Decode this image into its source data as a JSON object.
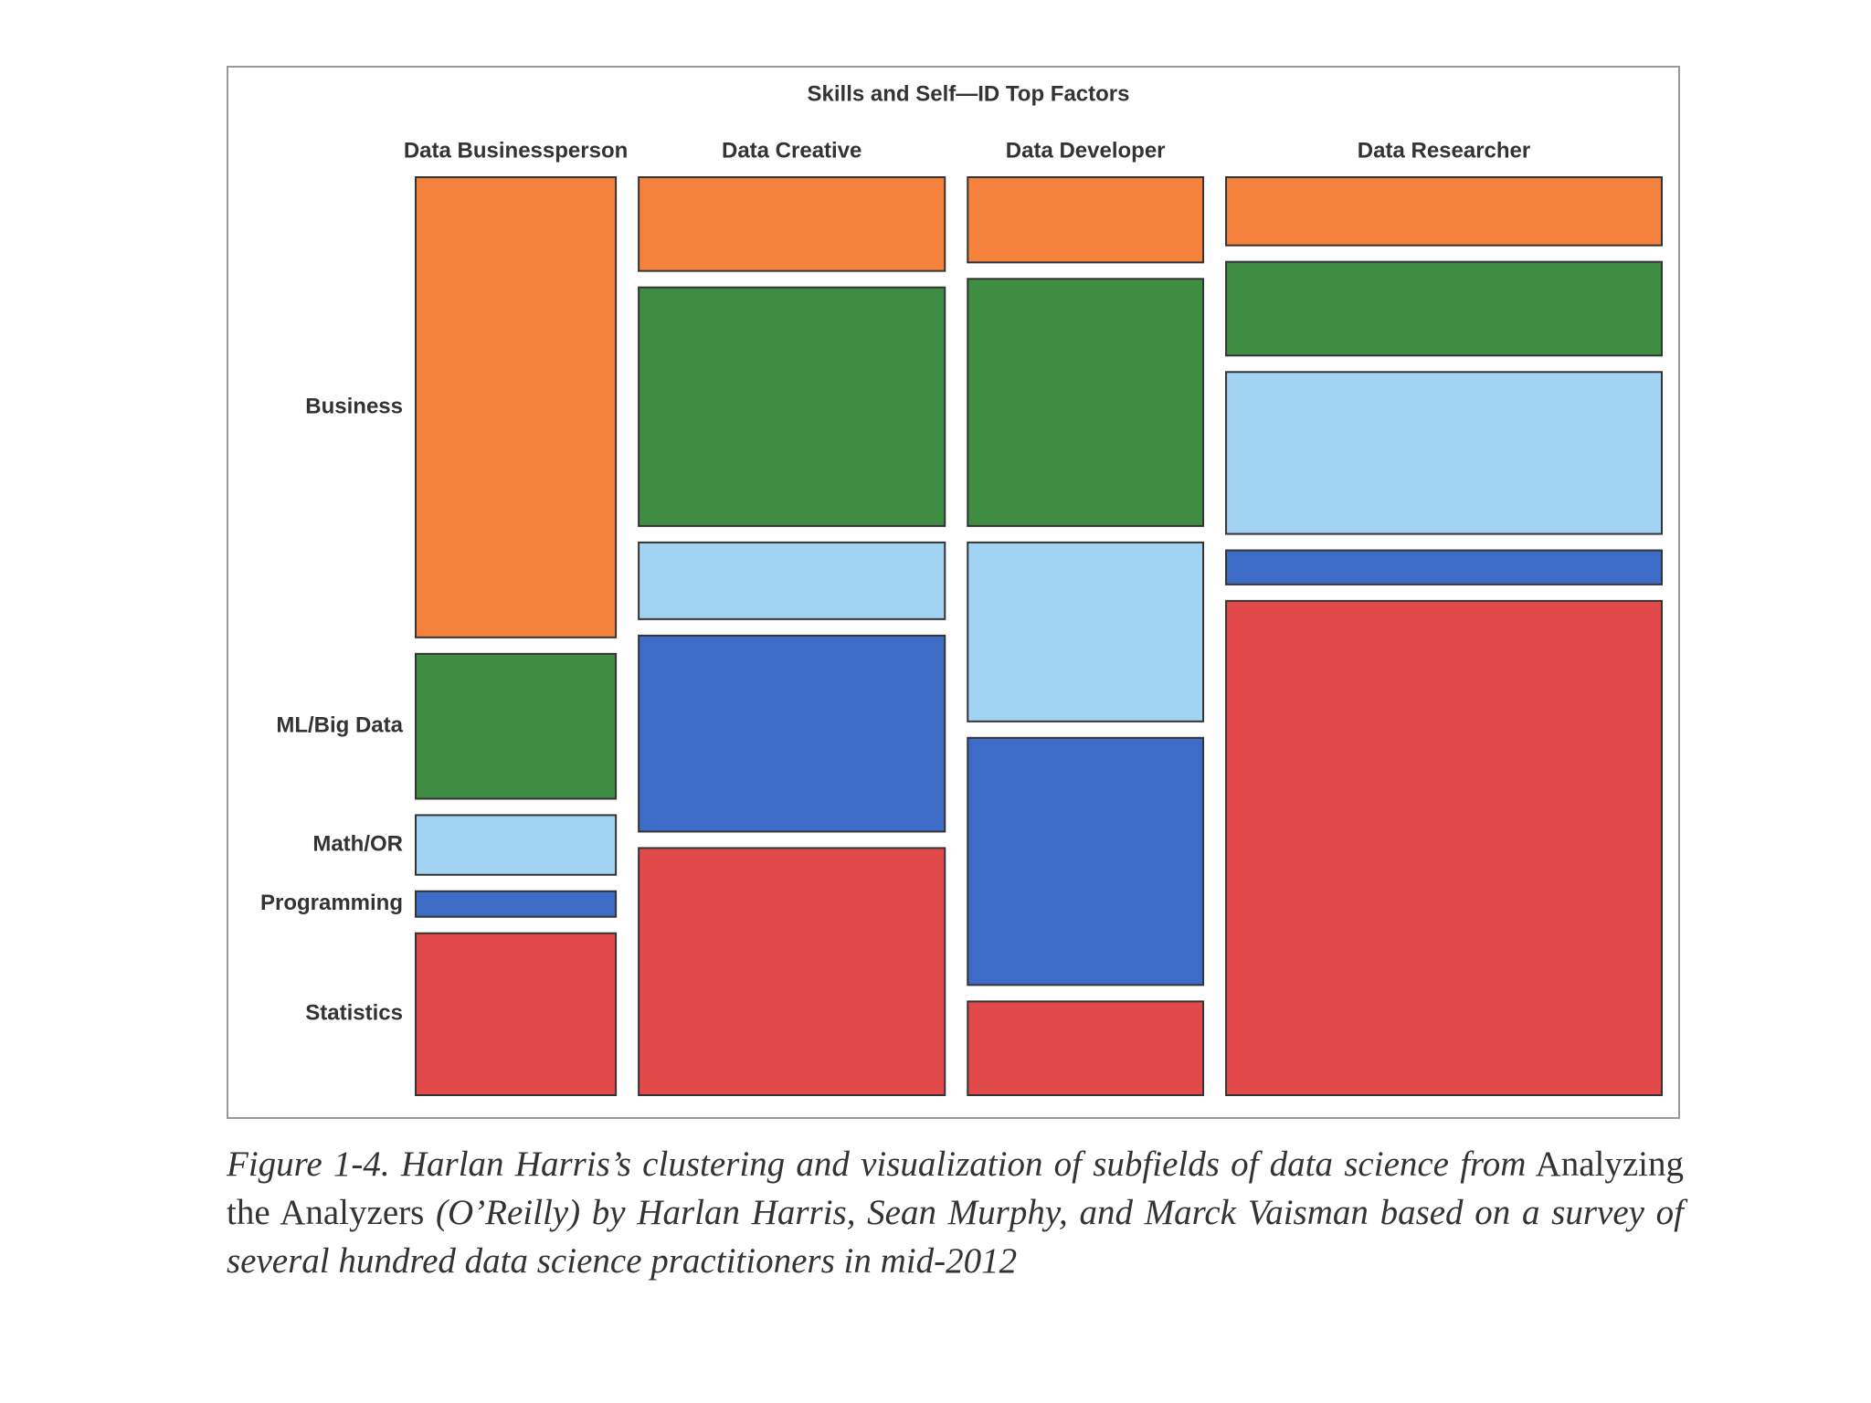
{
  "chart_data": {
    "type": "mosaic",
    "title": "Skills and Self—ID Top Factors",
    "categories": [
      "Data Businessperson",
      "Data Creative",
      "Data Developer",
      "Data Researcher"
    ],
    "widths": [
      17,
      26,
      20,
      37
    ],
    "series": [
      {
        "name": "Business",
        "color": "#f4823c",
        "values": [
          54,
          11,
          10,
          8
        ]
      },
      {
        "name": "ML/Big Data",
        "color": "#3f8d42",
        "values": [
          17,
          28,
          29,
          11
        ]
      },
      {
        "name": "Math/OR",
        "color": "#a3d3f3",
        "values": [
          7,
          9,
          21,
          19
        ]
      },
      {
        "name": "Programming",
        "color": "#3c6cc6",
        "values": [
          3,
          23,
          29,
          4
        ]
      },
      {
        "name": "Statistics",
        "color": "#e2494b",
        "values": [
          19,
          29,
          11,
          58
        ]
      }
    ]
  },
  "figure_caption": [
    "Figure 1-4. Harlan Harris’s clustering and visualization of subfields of data science from",
    "Analyzing the Analyzers",
    "(O’Reilly) by Harlan Harris, Sean Murphy, and Marck Vaisman based on a survey of several hundred data science practitioners in mid-2012"
  ]
}
